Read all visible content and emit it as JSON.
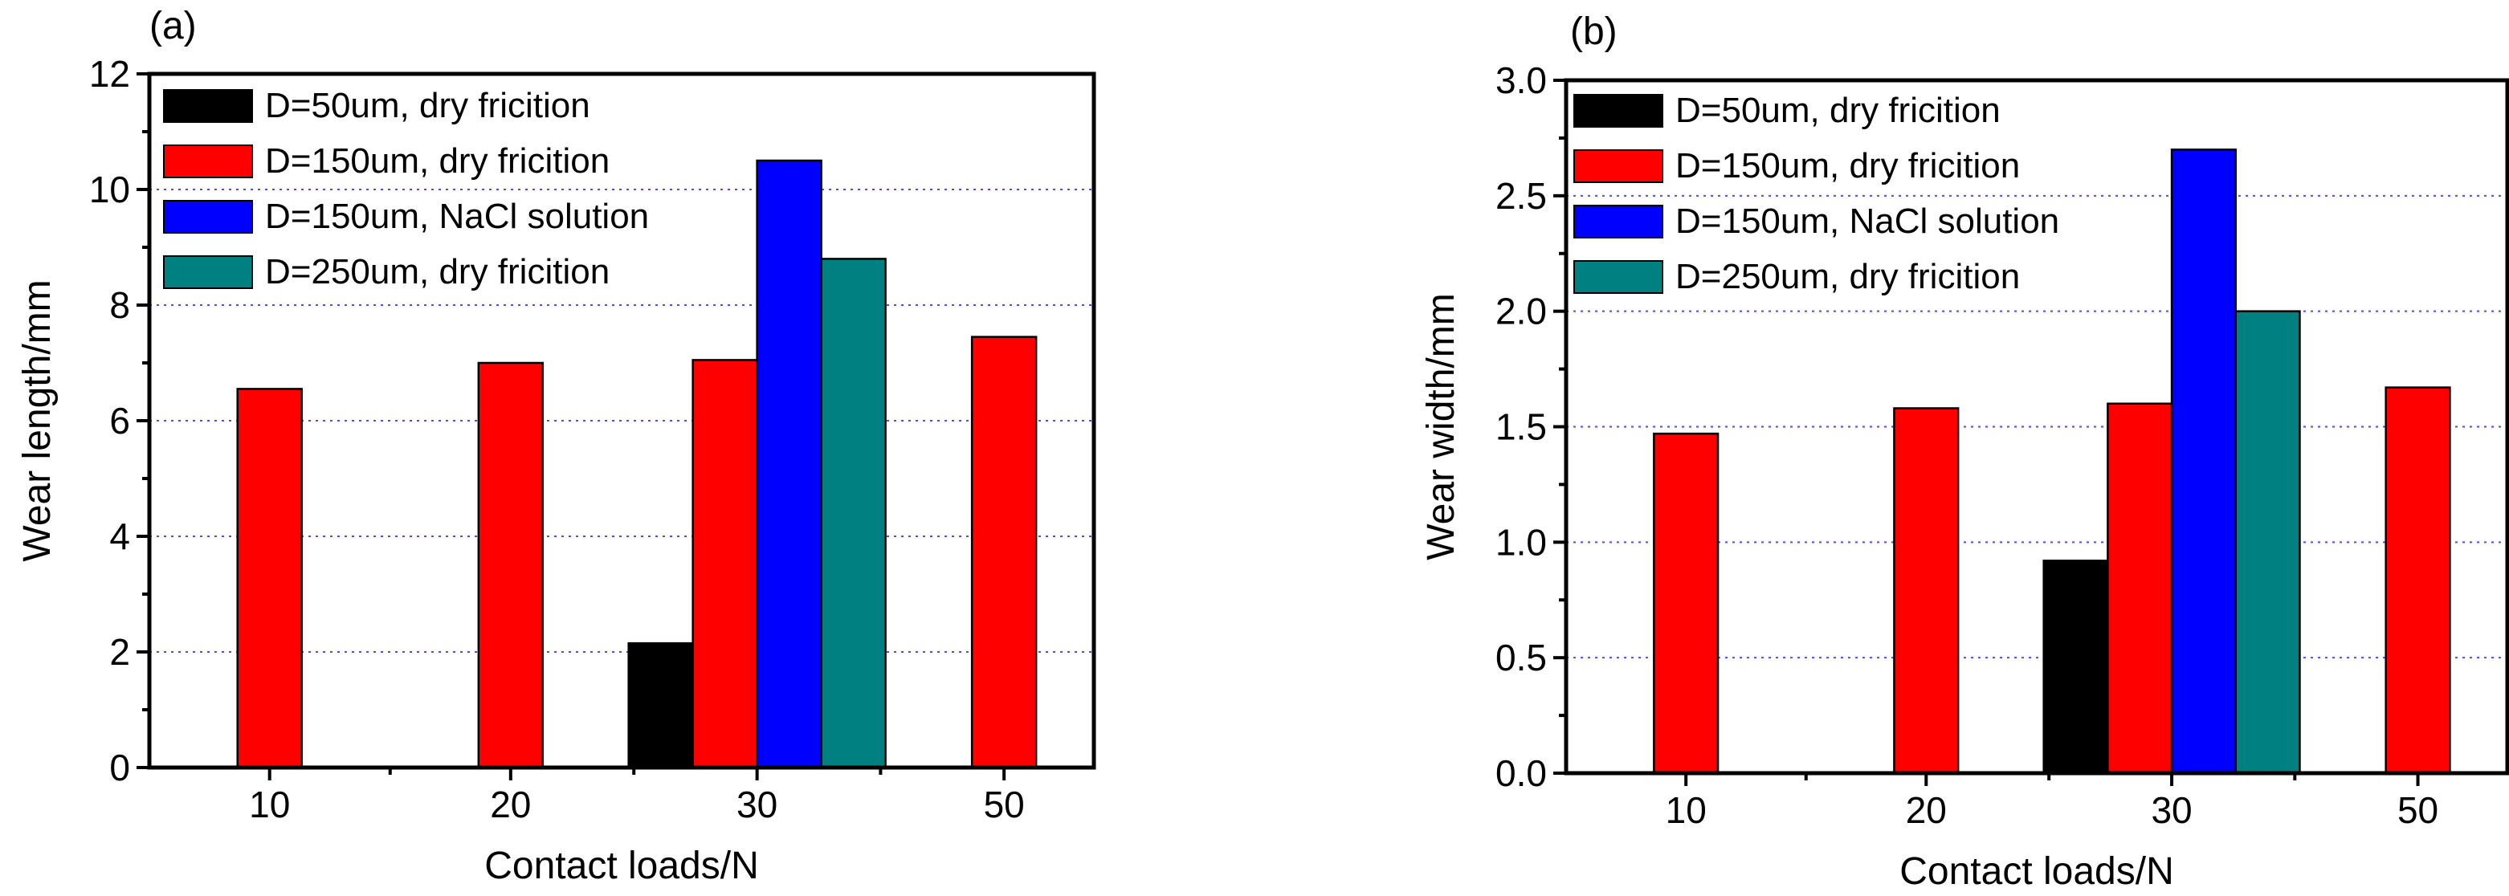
{
  "chart_data": [
    {
      "panel_label": "(a)",
      "type": "bar",
      "xlabel": "Contact loads/N",
      "ylabel": "Wear length/mm",
      "categories": [
        "10",
        "20",
        "30",
        "50"
      ],
      "ylim": [
        0,
        12
      ],
      "yticks": [
        "0",
        "2",
        "4",
        "6",
        "8",
        "10",
        "12"
      ],
      "grid": "horizontal dotted",
      "legend_position": "top-left",
      "series": [
        {
          "name": "D=50um, dry fricition",
          "color": "#000000",
          "values": [
            null,
            null,
            2.15,
            null
          ]
        },
        {
          "name": "D=150um, dry fricition",
          "color": "#ff0000",
          "values": [
            6.55,
            7.0,
            7.05,
            7.45
          ]
        },
        {
          "name": "D=150um, NaCl solution",
          "color": "#0000ff",
          "values": [
            null,
            null,
            10.5,
            null
          ]
        },
        {
          "name": "D=250um, dry fricition",
          "color": "#008080",
          "values": [
            null,
            null,
            8.8,
            null
          ]
        }
      ]
    },
    {
      "panel_label": "(b)",
      "type": "bar",
      "xlabel": "Contact loads/N",
      "ylabel": "Wear width/mm",
      "categories": [
        "10",
        "20",
        "30",
        "50"
      ],
      "ylim": [
        0,
        3.0
      ],
      "yticks": [
        "0.0",
        "0.5",
        "1.0",
        "1.5",
        "2.0",
        "2.5",
        "3.0"
      ],
      "grid": "horizontal dotted",
      "legend_position": "top-left",
      "series": [
        {
          "name": "D=50um, dry fricition",
          "color": "#000000",
          "values": [
            null,
            null,
            0.92,
            null
          ]
        },
        {
          "name": "D=150um, dry fricition",
          "color": "#ff0000",
          "values": [
            1.47,
            1.58,
            1.6,
            1.67
          ]
        },
        {
          "name": "D=150um, NaCl solution",
          "color": "#0000ff",
          "values": [
            null,
            null,
            2.7,
            null
          ]
        },
        {
          "name": "D=250um, dry fricition",
          "color": "#008080",
          "values": [
            null,
            null,
            2.0,
            null
          ]
        }
      ]
    }
  ]
}
